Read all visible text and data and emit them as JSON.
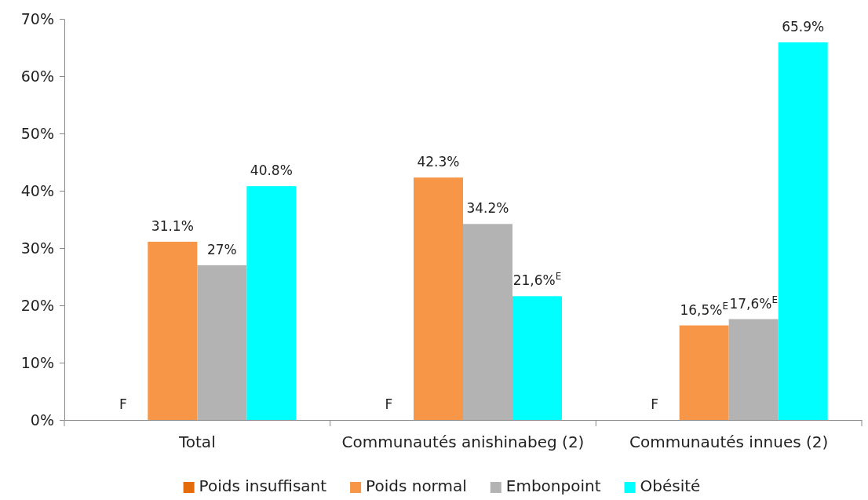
{
  "chart_data": {
    "type": "bar",
    "categories": [
      "Total",
      "Communautés anishinabeg (2)",
      "Communautés innues (2)"
    ],
    "series": [
      {
        "name": "Poids insuffisant",
        "color": "#e46c0a",
        "values": [
          null,
          null,
          null
        ],
        "value_labels": [
          "F",
          "F",
          "F"
        ]
      },
      {
        "name": "Poids normal",
        "color": "#f79646",
        "values": [
          31.1,
          42.3,
          16.5
        ],
        "value_labels": [
          "31.1%",
          "42.3%",
          "16,5%$^{E}$"
        ]
      },
      {
        "name": "Embonpoint",
        "color": "#b3b3b3",
        "values": [
          27,
          34.2,
          17.6
        ],
        "value_labels": [
          "27%",
          "34.2%",
          "17,6%$^{E}$"
        ]
      },
      {
        "name": "Obésité",
        "color": "#00ffff",
        "values": [
          40.8,
          21.6,
          65.9
        ],
        "value_labels": [
          "40.8%",
          "21,6%$^{E}$",
          "65.9%"
        ]
      }
    ],
    "ylim": [
      0,
      70
    ],
    "yticks": [
      {
        "value": 0,
        "label": "0%"
      },
      {
        "value": 10,
        "label": "10%"
      },
      {
        "value": 20,
        "label": "20%"
      },
      {
        "value": 30,
        "label": "30%"
      },
      {
        "value": 40,
        "label": "40%"
      },
      {
        "value": 50,
        "label": "50%"
      },
      {
        "value": 60,
        "label": "60%"
      },
      {
        "value": 70,
        "label": "70%"
      }
    ],
    "grid": false,
    "legend": "bottom"
  }
}
